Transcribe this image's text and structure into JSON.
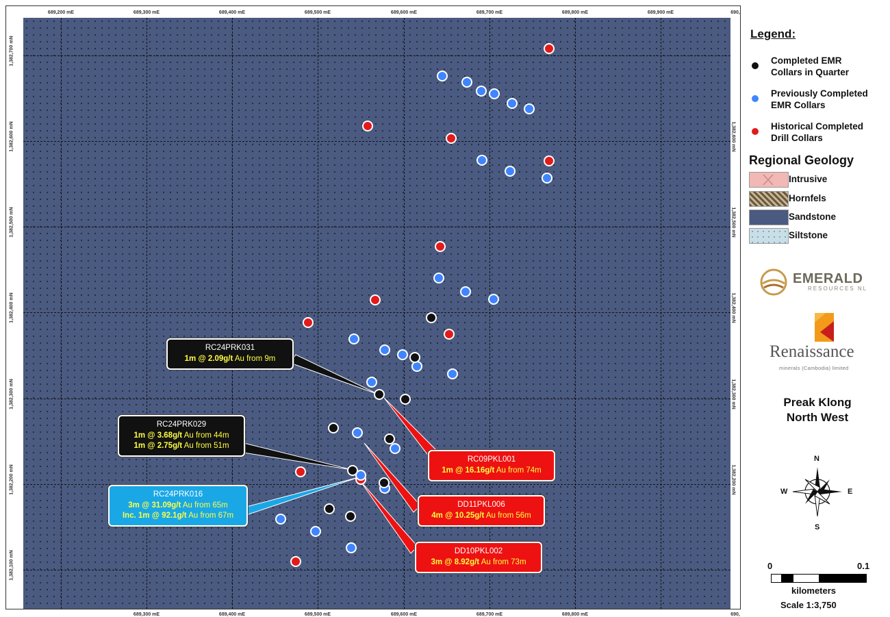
{
  "map": {
    "x_ticks": [
      "689,200 mE",
      "689,300 mE",
      "689,400 mE",
      "689,500 mE",
      "689,600 mE",
      "689,700 mE",
      "689,800 mE",
      "689,900 mE",
      "690,"
    ],
    "x_ticks_bottom": [
      "689,300 mE",
      "689,400 mE",
      "689,500 mE",
      "689,600 mE",
      "689,700 mE",
      "689,800 mE",
      "690,"
    ],
    "y_ticks_left": [
      "1,382,700 mN",
      "1,382,600 mN",
      "1,382,500 mN",
      "1,382,400 mN",
      "1,382,300 mN",
      "1,382,200 mN",
      "1,382,100 mN"
    ],
    "y_ticks_right": [
      "1,382,600 mN",
      "1,382,500 mN",
      "1,382,400 mN",
      "1,382,300 mN",
      "1,382,200 mN"
    ],
    "background_color": "#4a5a80"
  },
  "collars": {
    "black": [
      "RC24PRK031",
      "RC24PRK029"
    ],
    "colors": {
      "black": "#111111",
      "blue": "#3f85ff",
      "red": "#e21a1a"
    }
  },
  "callouts": [
    {
      "hole": "RC24PRK031",
      "lines": [
        {
          "a": "1m @ 2.09g/t",
          "b": " Au from 9m"
        }
      ],
      "style": "black"
    },
    {
      "hole": "RC24PRK029",
      "lines": [
        {
          "a": "1m @ 3.68g/t",
          "b": " Au from 44m"
        },
        {
          "a": "1m @ 2.75g/t",
          "b": " Au from 51m"
        }
      ],
      "style": "black"
    },
    {
      "hole": "RC24PRK016",
      "lines": [
        {
          "a": "3m @ 31.09g/t",
          "b": " Au from 65m"
        },
        {
          "a": "Inc. 1m @ 92.1g/t",
          "b": " Au from 67m"
        }
      ],
      "style": "blue"
    },
    {
      "hole": "RC09PKL001",
      "lines": [
        {
          "a": "1m @ 16.16g/t",
          "b": " Au from 74m"
        }
      ],
      "style": "red"
    },
    {
      "hole": "DD11PKL006",
      "lines": [
        {
          "a": "4m @ 10.25g/t",
          "b": " Au from 56m"
        }
      ],
      "style": "red"
    },
    {
      "hole": "DD10PKL002",
      "lines": [
        {
          "a": "3m @ 8.92g/t",
          "b": " Au from 73m"
        }
      ],
      "style": "red"
    }
  ],
  "legend": {
    "title": "Legend:",
    "items": [
      {
        "label1": "Completed EMR",
        "label2": "Collars in Quarter",
        "color": "#111111"
      },
      {
        "label1": "Previously Completed",
        "label2": "EMR Collars",
        "color": "#3f85ff"
      },
      {
        "label1": "Historical Completed",
        "label2": "Drill Collars",
        "color": "#e21a1a"
      }
    ],
    "geology_title": "Regional Geology",
    "geology": [
      "Intrusive",
      "Hornfels",
      "Sandstone",
      "Siltstone"
    ]
  },
  "logos": {
    "emerald": "EMERALD",
    "emerald_sub": "RESOURCES NL",
    "renaissance": "Renaissance",
    "renaissance_sub": "minerals (Cambodia) limited"
  },
  "project": {
    "line1": "Preak Klong",
    "line2": "North West"
  },
  "compass": {
    "n": "N",
    "s": "S",
    "e": "E",
    "w": "W"
  },
  "scale": {
    "start": "0",
    "end": "0.1",
    "unit": "kilometers",
    "ratio": "Scale 1:3,750"
  }
}
